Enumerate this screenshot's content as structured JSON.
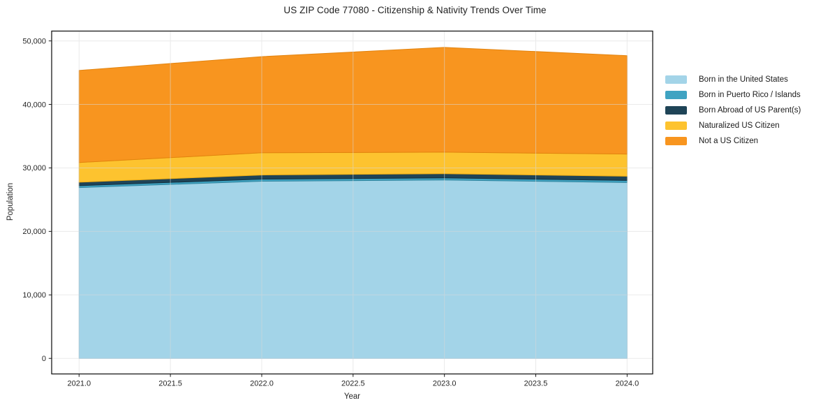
{
  "title": "US ZIP Code 77080 - Citizenship & Nativity Trends Over Time",
  "axes": {
    "xlabel": "Year",
    "ylabel": "Population",
    "x_tick_labels": [
      "2021.0",
      "2021.5",
      "2022.0",
      "2022.5",
      "2023.0",
      "2023.5",
      "2024.0"
    ],
    "y_tick_labels": [
      "0",
      "10,000",
      "20,000",
      "30,000",
      "40,000",
      "50,000"
    ]
  },
  "chart_data": {
    "type": "area",
    "stacked": true,
    "title": "US ZIP Code 77080 - Citizenship & Nativity Trends Over Time",
    "xlabel": "Year",
    "ylabel": "Population",
    "x": [
      2021,
      2022,
      2023,
      2024
    ],
    "x_tick_values": [
      2021.0,
      2021.5,
      2022.0,
      2022.5,
      2023.0,
      2023.5,
      2024.0
    ],
    "y_tick_values": [
      0,
      10000,
      20000,
      30000,
      40000,
      50000
    ],
    "xlim": [
      2020.85,
      2024.14
    ],
    "ylim": [
      -2450,
      51550
    ],
    "grid": true,
    "legend_position": "right outside axes, upper",
    "series": [
      {
        "name": "Born in the United States",
        "color": "#a3d4e8",
        "edge": "#85c0dc",
        "values": [
          26900,
          27900,
          28100,
          27700
        ]
      },
      {
        "name": "Born in Puerto Rico / Islands",
        "color": "#3fa3c2",
        "edge": "#32869f",
        "values": [
          300,
          330,
          330,
          330
        ]
      },
      {
        "name": "Born Abroad of US Parent(s)",
        "color": "#1f4457",
        "edge": "#142f3d",
        "values": [
          550,
          650,
          650,
          650
        ]
      },
      {
        "name": "Naturalized US Citizen",
        "color": "#fdc32f",
        "edge": "#edac14",
        "values": [
          3100,
          3500,
          3400,
          3500
        ]
      },
      {
        "name": "Not a US Citizen",
        "color": "#f8951f",
        "edge": "#e2830e",
        "values": [
          14500,
          15150,
          16500,
          15500
        ]
      }
    ],
    "stack_totals": [
      45350,
      47530,
      48980,
      47680
    ],
    "grid_color": "#d9d9d9",
    "axis_color": "#1a1a1a",
    "tick_label_color": "#262626"
  }
}
